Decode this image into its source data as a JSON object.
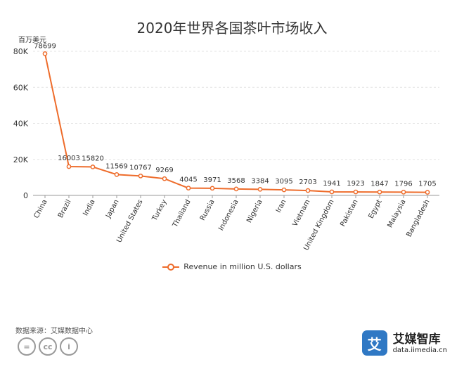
{
  "chart_data": {
    "type": "line",
    "title": "2020年世界各国茶叶市场收入",
    "unit_label": "百万美元",
    "categories": [
      "China",
      "Brazil",
      "India",
      "Japan",
      "United States",
      "Turkey",
      "Thailand",
      "Russia",
      "Indonesia",
      "Nigeria",
      "Iran",
      "Vietnam",
      "United Kingdom",
      "Pakistan",
      "Egypt",
      "Malaysia",
      "Bangladesh"
    ],
    "series": [
      {
        "name": "Revenue in million U.S. dollars",
        "values": [
          78699,
          16003,
          15820,
          11569,
          10767,
          9269,
          4045,
          3971,
          3568,
          3384,
          3095,
          2703,
          1941,
          1923,
          1847,
          1796,
          1705
        ]
      }
    ],
    "ylim": [
      0,
      80000
    ],
    "yticks": [
      0,
      20000,
      40000,
      60000,
      80000
    ],
    "ytick_labels": [
      "0",
      "20K",
      "40K",
      "60K",
      "80K"
    ],
    "grid": true,
    "legend_position": "bottom",
    "colors": {
      "line": "#ee6c2b",
      "grid": "#e3e3e3",
      "axis": "#999999"
    }
  },
  "footer": {
    "source": "数据来源：艾媒数据中心",
    "license_icons": [
      "equals-icon",
      "cc-icon",
      "person-icon"
    ],
    "license_glyphs": [
      "=",
      "cc",
      "i"
    ],
    "brand_mark": "艾",
    "brand_name": "艾媒智库",
    "brand_url": "data.iimedia.cn"
  }
}
